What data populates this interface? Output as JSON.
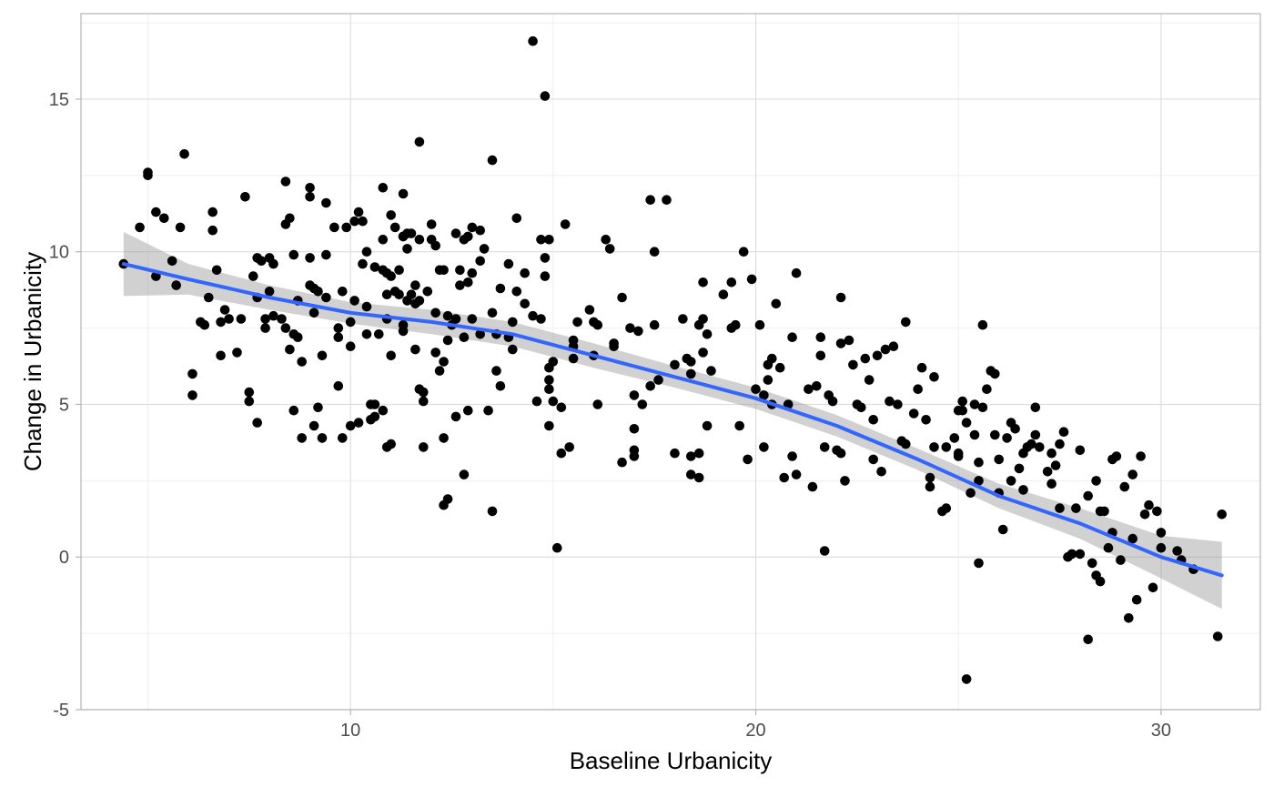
{
  "chart_data": {
    "type": "scatter",
    "title": "",
    "xlabel": "Baseline Urbanicity",
    "ylabel": "Change in Urbanicity",
    "xlim": [
      3.35,
      32.45
    ],
    "ylim": [
      -5,
      17.8
    ],
    "x_ticks": [
      10,
      20,
      30
    ],
    "x_tick_labels": [
      "10",
      "20",
      "30"
    ],
    "x_minor_ticks": [
      5,
      15,
      25
    ],
    "y_ticks": [
      -5,
      0,
      5,
      10,
      15
    ],
    "y_tick_labels": [
      "-5",
      "0",
      "5",
      "10",
      "15"
    ],
    "y_minor_ticks": [
      -2.5,
      2.5,
      7.5,
      12.5,
      17.5
    ],
    "grid": true,
    "theme": "light",
    "colors": {
      "points": "#000000",
      "smooth_line": "#3366ff",
      "confidence_band": "#999999",
      "grid_major": "#dedede",
      "grid_minor": "#efefef",
      "panel_border": "#b3b3b3"
    },
    "points": [
      [
        4.4,
        9.6
      ],
      [
        4.8,
        10.8
      ],
      [
        5.0,
        12.6
      ],
      [
        5.0,
        12.5
      ],
      [
        5.2,
        9.2
      ],
      [
        5.2,
        11.3
      ],
      [
        5.4,
        11.1
      ],
      [
        5.6,
        9.7
      ],
      [
        5.7,
        8.9
      ],
      [
        5.8,
        10.8
      ],
      [
        5.9,
        13.2
      ],
      [
        6.1,
        6.0
      ],
      [
        6.1,
        5.3
      ],
      [
        6.3,
        7.7
      ],
      [
        6.4,
        7.6
      ],
      [
        6.5,
        8.5
      ],
      [
        6.6,
        11.3
      ],
      [
        6.6,
        10.7
      ],
      [
        6.7,
        9.4
      ],
      [
        6.8,
        7.7
      ],
      [
        6.8,
        6.6
      ],
      [
        6.9,
        8.1
      ],
      [
        7.0,
        7.8
      ],
      [
        7.2,
        6.7
      ],
      [
        7.3,
        7.8
      ],
      [
        7.4,
        11.8
      ],
      [
        7.5,
        5.4
      ],
      [
        7.5,
        5.1
      ],
      [
        7.6,
        9.2
      ],
      [
        7.7,
        9.8
      ],
      [
        7.7,
        8.5
      ],
      [
        7.7,
        4.4
      ],
      [
        7.8,
        9.7
      ],
      [
        7.9,
        7.8
      ],
      [
        7.9,
        7.5
      ],
      [
        8.0,
        9.8
      ],
      [
        8.0,
        8.7
      ],
      [
        8.1,
        9.6
      ],
      [
        8.1,
        7.9
      ],
      [
        8.3,
        7.8
      ],
      [
        8.4,
        12.3
      ],
      [
        8.4,
        10.9
      ],
      [
        8.4,
        7.5
      ],
      [
        8.5,
        11.1
      ],
      [
        8.5,
        6.8
      ],
      [
        8.6,
        4.8
      ],
      [
        8.6,
        7.3
      ],
      [
        8.6,
        9.9
      ],
      [
        8.7,
        8.4
      ],
      [
        8.7,
        7.2
      ],
      [
        8.8,
        6.4
      ],
      [
        8.8,
        3.9
      ],
      [
        9.0,
        12.1
      ],
      [
        9.0,
        11.8
      ],
      [
        9.0,
        9.8
      ],
      [
        9.0,
        8.9
      ],
      [
        9.1,
        8.8
      ],
      [
        9.1,
        4.3
      ],
      [
        9.1,
        8.0
      ],
      [
        9.2,
        4.9
      ],
      [
        9.2,
        8.7
      ],
      [
        9.3,
        6.6
      ],
      [
        9.3,
        3.9
      ],
      [
        9.4,
        11.6
      ],
      [
        9.4,
        9.9
      ],
      [
        9.4,
        8.5
      ],
      [
        9.6,
        10.8
      ],
      [
        9.7,
        7.5
      ],
      [
        9.7,
        7.2
      ],
      [
        9.7,
        5.6
      ],
      [
        9.8,
        3.9
      ],
      [
        9.8,
        8.7
      ],
      [
        9.9,
        10.8
      ],
      [
        10.0,
        7.7
      ],
      [
        10.0,
        6.9
      ],
      [
        10.0,
        4.3
      ],
      [
        10.1,
        8.4
      ],
      [
        10.1,
        11.0
      ],
      [
        10.2,
        11.3
      ],
      [
        10.2,
        4.4
      ],
      [
        10.3,
        11.0
      ],
      [
        10.3,
        9.6
      ],
      [
        10.4,
        8.2
      ],
      [
        10.4,
        10.0
      ],
      [
        10.4,
        7.3
      ],
      [
        10.5,
        5.0
      ],
      [
        10.5,
        4.5
      ],
      [
        10.6,
        9.5
      ],
      [
        10.6,
        5.0
      ],
      [
        10.6,
        4.6
      ],
      [
        10.7,
        7.3
      ],
      [
        10.8,
        12.1
      ],
      [
        10.8,
        10.4
      ],
      [
        10.8,
        9.4
      ],
      [
        10.8,
        4.8
      ],
      [
        10.9,
        9.3
      ],
      [
        10.9,
        8.6
      ],
      [
        10.9,
        7.8
      ],
      [
        10.9,
        3.6
      ],
      [
        11.0,
        11.2
      ],
      [
        11.0,
        9.2
      ],
      [
        11.0,
        6.6
      ],
      [
        11.0,
        3.7
      ],
      [
        11.1,
        10.8
      ],
      [
        11.1,
        8.7
      ],
      [
        11.2,
        9.4
      ],
      [
        11.2,
        8.6
      ],
      [
        11.3,
        11.9
      ],
      [
        11.3,
        10.5
      ],
      [
        11.3,
        10.5
      ],
      [
        11.3,
        7.6
      ],
      [
        11.3,
        7.4
      ],
      [
        11.4,
        10.6
      ],
      [
        11.4,
        8.4
      ],
      [
        11.4,
        10.1
      ],
      [
        11.5,
        10.6
      ],
      [
        11.5,
        8.6
      ],
      [
        11.6,
        8.9
      ],
      [
        11.6,
        8.3
      ],
      [
        11.6,
        6.8
      ],
      [
        11.7,
        13.6
      ],
      [
        11.7,
        10.4
      ],
      [
        11.7,
        8.4
      ],
      [
        11.7,
        5.5
      ],
      [
        11.8,
        5.4
      ],
      [
        11.8,
        3.6
      ],
      [
        11.8,
        5.1
      ],
      [
        11.9,
        8.7
      ],
      [
        12.0,
        10.9
      ],
      [
        12.0,
        10.4
      ],
      [
        12.1,
        10.2
      ],
      [
        12.1,
        8.0
      ],
      [
        12.1,
        6.7
      ],
      [
        12.2,
        9.4
      ],
      [
        12.2,
        6.1
      ],
      [
        12.3,
        9.4
      ],
      [
        12.3,
        6.4
      ],
      [
        12.3,
        3.9
      ],
      [
        12.3,
        1.7
      ],
      [
        12.4,
        1.9
      ],
      [
        12.4,
        7.9
      ],
      [
        12.4,
        7.1
      ],
      [
        12.5,
        7.6
      ],
      [
        12.6,
        7.8
      ],
      [
        12.6,
        10.6
      ],
      [
        12.6,
        4.6
      ],
      [
        12.7,
        8.9
      ],
      [
        12.7,
        9.4
      ],
      [
        12.8,
        10.4
      ],
      [
        12.8,
        2.7
      ],
      [
        12.8,
        7.2
      ],
      [
        12.9,
        10.5
      ],
      [
        12.9,
        9.0
      ],
      [
        12.9,
        4.8
      ],
      [
        13.0,
        10.8
      ],
      [
        13.0,
        9.3
      ],
      [
        13.0,
        7.8
      ],
      [
        13.2,
        10.7
      ],
      [
        13.2,
        9.7
      ],
      [
        13.2,
        7.3
      ],
      [
        13.3,
        10.1
      ],
      [
        13.4,
        4.8
      ],
      [
        13.5,
        8.0
      ],
      [
        13.5,
        1.5
      ],
      [
        13.5,
        13.0
      ],
      [
        13.6,
        7.3
      ],
      [
        13.6,
        6.1
      ],
      [
        13.7,
        8.8
      ],
      [
        13.7,
        5.6
      ],
      [
        13.9,
        9.6
      ],
      [
        13.9,
        7.2
      ],
      [
        14.0,
        7.7
      ],
      [
        14.0,
        6.8
      ],
      [
        14.1,
        11.1
      ],
      [
        14.1,
        8.7
      ],
      [
        14.3,
        9.3
      ],
      [
        14.3,
        8.3
      ],
      [
        14.5,
        16.9
      ],
      [
        14.5,
        7.9
      ],
      [
        14.6,
        5.1
      ],
      [
        14.7,
        10.4
      ],
      [
        14.7,
        7.8
      ],
      [
        14.8,
        15.1
      ],
      [
        14.8,
        9.8
      ],
      [
        14.8,
        9.2
      ],
      [
        14.9,
        10.4
      ],
      [
        14.9,
        6.2
      ],
      [
        14.9,
        5.8
      ],
      [
        14.9,
        5.5
      ],
      [
        14.9,
        4.3
      ],
      [
        15.0,
        6.4
      ],
      [
        15.0,
        5.1
      ],
      [
        15.1,
        0.3
      ],
      [
        15.2,
        4.9
      ],
      [
        15.2,
        3.4
      ],
      [
        15.3,
        10.9
      ],
      [
        15.4,
        3.6
      ],
      [
        15.5,
        7.1
      ],
      [
        15.5,
        6.9
      ],
      [
        15.5,
        6.5
      ],
      [
        15.6,
        7.7
      ],
      [
        15.9,
        8.1
      ],
      [
        16.0,
        7.7
      ],
      [
        16.0,
        6.6
      ],
      [
        16.1,
        7.6
      ],
      [
        16.1,
        5.0
      ],
      [
        16.3,
        10.4
      ],
      [
        16.4,
        10.1
      ],
      [
        16.5,
        7.0
      ],
      [
        16.5,
        6.9
      ],
      [
        16.7,
        8.5
      ],
      [
        16.7,
        3.1
      ],
      [
        16.9,
        7.5
      ],
      [
        17.0,
        5.3
      ],
      [
        17.0,
        3.3
      ],
      [
        17.0,
        3.5
      ],
      [
        17.0,
        4.2
      ],
      [
        17.1,
        7.4
      ],
      [
        17.2,
        5.0
      ],
      [
        17.4,
        11.7
      ],
      [
        17.4,
        5.6
      ],
      [
        17.5,
        10.0
      ],
      [
        17.5,
        7.6
      ],
      [
        17.6,
        5.8
      ],
      [
        17.8,
        11.7
      ],
      [
        18.0,
        6.3
      ],
      [
        18.0,
        3.4
      ],
      [
        18.2,
        7.8
      ],
      [
        18.3,
        6.5
      ],
      [
        18.4,
        6.4
      ],
      [
        18.4,
        2.7
      ],
      [
        18.4,
        6.0
      ],
      [
        18.4,
        3.3
      ],
      [
        18.6,
        7.6
      ],
      [
        18.6,
        3.4
      ],
      [
        18.6,
        2.6
      ],
      [
        18.7,
        9.0
      ],
      [
        18.7,
        7.8
      ],
      [
        18.7,
        6.7
      ],
      [
        18.8,
        7.3
      ],
      [
        18.8,
        4.3
      ],
      [
        18.9,
        6.1
      ],
      [
        19.2,
        8.6
      ],
      [
        19.4,
        7.5
      ],
      [
        19.4,
        9.0
      ],
      [
        19.5,
        7.6
      ],
      [
        19.6,
        4.3
      ],
      [
        19.7,
        10.0
      ],
      [
        19.8,
        3.2
      ],
      [
        19.9,
        9.1
      ],
      [
        20.0,
        5.5
      ],
      [
        20.1,
        7.6
      ],
      [
        20.2,
        5.3
      ],
      [
        20.2,
        3.6
      ],
      [
        20.3,
        6.3
      ],
      [
        20.3,
        5.8
      ],
      [
        20.4,
        6.5
      ],
      [
        20.4,
        5.0
      ],
      [
        20.5,
        8.3
      ],
      [
        20.6,
        6.2
      ],
      [
        20.7,
        2.6
      ],
      [
        20.8,
        5.0
      ],
      [
        20.9,
        7.2
      ],
      [
        20.9,
        3.3
      ],
      [
        21.0,
        9.3
      ],
      [
        21.0,
        2.7
      ],
      [
        21.3,
        5.5
      ],
      [
        21.4,
        2.3
      ],
      [
        21.5,
        5.6
      ],
      [
        21.6,
        7.2
      ],
      [
        21.6,
        6.6
      ],
      [
        21.7,
        3.6
      ],
      [
        21.7,
        0.2
      ],
      [
        21.8,
        5.3
      ],
      [
        21.9,
        5.1
      ],
      [
        22.0,
        3.5
      ],
      [
        22.1,
        3.4
      ],
      [
        22.1,
        8.5
      ],
      [
        22.1,
        7.0
      ],
      [
        22.2,
        2.5
      ],
      [
        22.3,
        7.1
      ],
      [
        22.4,
        6.3
      ],
      [
        22.5,
        5.0
      ],
      [
        22.6,
        4.9
      ],
      [
        22.7,
        6.5
      ],
      [
        22.8,
        5.8
      ],
      [
        22.9,
        3.2
      ],
      [
        22.9,
        4.5
      ],
      [
        23.0,
        6.6
      ],
      [
        23.1,
        2.8
      ],
      [
        23.2,
        6.8
      ],
      [
        23.3,
        5.1
      ],
      [
        23.4,
        6.9
      ],
      [
        23.5,
        5.0
      ],
      [
        23.6,
        3.8
      ],
      [
        23.7,
        7.7
      ],
      [
        23.7,
        3.7
      ],
      [
        23.9,
        4.7
      ],
      [
        24.0,
        5.5
      ],
      [
        24.1,
        6.2
      ],
      [
        24.2,
        4.5
      ],
      [
        24.3,
        2.6
      ],
      [
        24.3,
        2.3
      ],
      [
        24.4,
        3.6
      ],
      [
        24.4,
        5.9
      ],
      [
        24.6,
        1.5
      ],
      [
        24.7,
        1.6
      ],
      [
        24.7,
        3.6
      ],
      [
        24.9,
        3.9
      ],
      [
        25.0,
        4.8
      ],
      [
        25.0,
        3.4
      ],
      [
        25.0,
        3.3
      ],
      [
        25.1,
        5.1
      ],
      [
        25.1,
        4.8
      ],
      [
        25.2,
        -4.0
      ],
      [
        25.2,
        4.4
      ],
      [
        25.3,
        2.1
      ],
      [
        25.4,
        5.0
      ],
      [
        25.4,
        4.0
      ],
      [
        25.5,
        -0.2
      ],
      [
        25.5,
        3.1
      ],
      [
        25.5,
        2.5
      ],
      [
        25.6,
        7.6
      ],
      [
        25.6,
        4.9
      ],
      [
        25.7,
        5.5
      ],
      [
        25.8,
        6.1
      ],
      [
        25.9,
        6.0
      ],
      [
        25.9,
        4.0
      ],
      [
        26.0,
        2.1
      ],
      [
        26.0,
        3.2
      ],
      [
        26.1,
        0.9
      ],
      [
        26.2,
        3.9
      ],
      [
        26.3,
        4.4
      ],
      [
        26.3,
        2.5
      ],
      [
        26.4,
        4.2
      ],
      [
        26.5,
        2.9
      ],
      [
        26.6,
        3.4
      ],
      [
        26.6,
        2.2
      ],
      [
        26.7,
        3.6
      ],
      [
        26.8,
        3.7
      ],
      [
        26.9,
        4.9
      ],
      [
        26.9,
        4.0
      ],
      [
        27.0,
        3.6
      ],
      [
        27.2,
        2.8
      ],
      [
        27.3,
        3.4
      ],
      [
        27.3,
        2.4
      ],
      [
        27.4,
        3.0
      ],
      [
        27.5,
        1.6
      ],
      [
        27.5,
        3.7
      ],
      [
        27.6,
        4.1
      ],
      [
        27.7,
        0.0
      ],
      [
        27.8,
        0.1
      ],
      [
        27.9,
        1.6
      ],
      [
        28.0,
        0.1
      ],
      [
        28.0,
        3.5
      ],
      [
        28.2,
        2.0
      ],
      [
        28.2,
        -2.7
      ],
      [
        28.3,
        -0.2
      ],
      [
        28.4,
        -0.6
      ],
      [
        28.4,
        2.5
      ],
      [
        28.5,
        1.5
      ],
      [
        28.5,
        -0.8
      ],
      [
        28.6,
        1.5
      ],
      [
        28.7,
        0.3
      ],
      [
        28.8,
        3.2
      ],
      [
        28.8,
        0.8
      ],
      [
        28.9,
        3.3
      ],
      [
        29.0,
        -0.1
      ],
      [
        29.1,
        2.3
      ],
      [
        29.2,
        -2.0
      ],
      [
        29.3,
        0.6
      ],
      [
        29.3,
        2.7
      ],
      [
        29.4,
        -1.4
      ],
      [
        29.5,
        3.3
      ],
      [
        29.6,
        1.4
      ],
      [
        29.7,
        1.7
      ],
      [
        29.8,
        -1.0
      ],
      [
        29.9,
        1.5
      ],
      [
        30.0,
        0.3
      ],
      [
        30.0,
        0.8
      ],
      [
        30.4,
        0.2
      ],
      [
        30.5,
        -0.1
      ],
      [
        30.8,
        -0.4
      ],
      [
        31.4,
        -2.6
      ],
      [
        31.5,
        1.4
      ]
    ],
    "smooth_fit": {
      "x": [
        4.4,
        6.0,
        8.0,
        10.0,
        12.0,
        14.0,
        16.0,
        18.0,
        20.0,
        22.0,
        24.0,
        26.0,
        28.0,
        30.0,
        31.5
      ],
      "y": [
        9.6,
        9.1,
        8.5,
        8.0,
        7.7,
        7.3,
        6.6,
        5.9,
        5.2,
        4.3,
        3.2,
        2.0,
        1.1,
        0.0,
        -0.6
      ],
      "lower": [
        8.55,
        8.6,
        8.1,
        7.65,
        7.3,
        6.9,
        6.2,
        5.55,
        4.85,
        3.95,
        2.85,
        1.6,
        0.6,
        -0.7,
        -1.7
      ],
      "upper": [
        10.65,
        9.6,
        8.9,
        8.35,
        8.1,
        7.7,
        7.0,
        6.25,
        5.55,
        4.65,
        3.55,
        2.4,
        1.6,
        0.7,
        0.5
      ]
    }
  }
}
